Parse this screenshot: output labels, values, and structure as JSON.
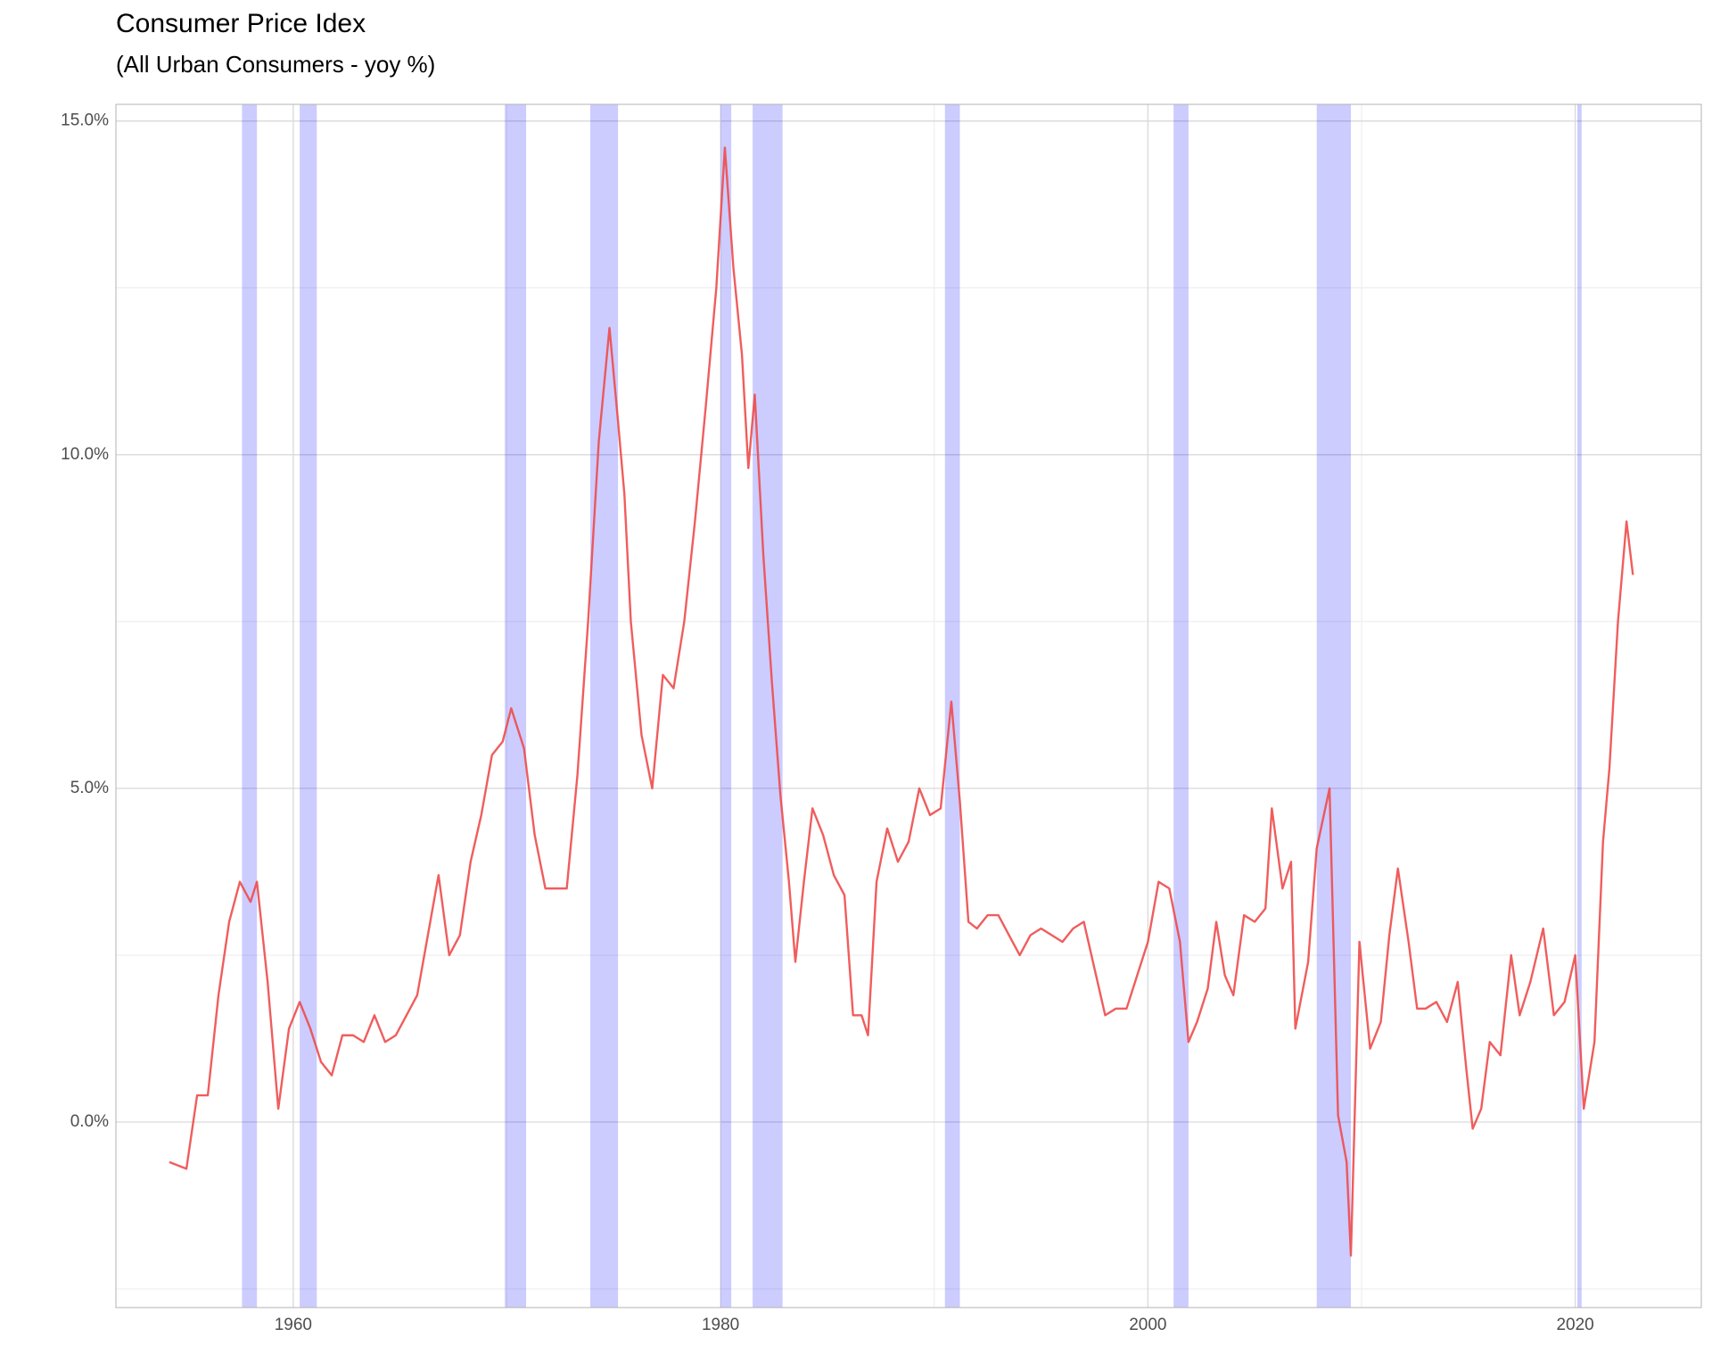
{
  "chart_data": {
    "type": "line",
    "title": "Consumer Price Idex",
    "subtitle": "(All Urban Consumers - yoy %)",
    "x": [
      1954.2,
      1955.0,
      1955.5,
      1956.0,
      1956.5,
      1957.0,
      1957.5,
      1958.0,
      1958.3,
      1958.8,
      1959.3,
      1959.8,
      1960.3,
      1960.8,
      1961.3,
      1961.8,
      1962.3,
      1962.8,
      1963.3,
      1963.8,
      1964.3,
      1964.8,
      1965.3,
      1965.8,
      1966.3,
      1966.8,
      1967.3,
      1967.8,
      1968.3,
      1968.8,
      1969.3,
      1969.8,
      1970.2,
      1970.8,
      1971.3,
      1971.8,
      1972.3,
      1972.8,
      1973.3,
      1973.8,
      1974.3,
      1974.8,
      1975.2,
      1975.5,
      1975.8,
      1976.3,
      1976.8,
      1977.3,
      1977.8,
      1978.3,
      1978.8,
      1979.3,
      1979.8,
      1980.2,
      1980.6,
      1981.0,
      1981.3,
      1981.6,
      1982.0,
      1982.4,
      1982.8,
      1983.2,
      1983.5,
      1983.9,
      1984.3,
      1984.8,
      1985.3,
      1985.8,
      1986.2,
      1986.6,
      1986.9,
      1987.3,
      1987.8,
      1988.3,
      1988.8,
      1989.3,
      1989.8,
      1990.3,
      1990.8,
      1991.2,
      1991.6,
      1992.0,
      1992.5,
      1993.0,
      1993.5,
      1994.0,
      1994.5,
      1995.0,
      1995.5,
      1996.0,
      1996.5,
      1997.0,
      1997.5,
      1998.0,
      1998.5,
      1999.0,
      1999.5,
      2000.0,
      2000.5,
      2001.0,
      2001.5,
      2001.9,
      2002.3,
      2002.8,
      2003.2,
      2003.6,
      2004.0,
      2004.5,
      2005.0,
      2005.5,
      2005.8,
      2006.3,
      2006.7,
      2006.9,
      2007.5,
      2007.9,
      2008.5,
      2008.9,
      2009.3,
      2009.5,
      2009.9,
      2010.4,
      2010.9,
      2011.3,
      2011.7,
      2012.2,
      2012.6,
      2013.0,
      2013.5,
      2014.0,
      2014.5,
      2014.9,
      2015.2,
      2015.6,
      2016.0,
      2016.5,
      2017.0,
      2017.4,
      2017.9,
      2018.5,
      2019.0,
      2019.5,
      2020.0,
      2020.4,
      2020.9,
      2021.3,
      2021.6,
      2022.0,
      2022.4,
      2022.7
    ],
    "series": [
      {
        "color": "#ee4b4b",
        "values": [
          -0.6,
          -0.7,
          0.4,
          0.4,
          1.9,
          3.0,
          3.6,
          3.3,
          3.6,
          2.1,
          0.2,
          1.4,
          1.8,
          1.4,
          0.9,
          0.7,
          1.3,
          1.3,
          1.2,
          1.6,
          1.2,
          1.3,
          1.6,
          1.9,
          2.8,
          3.7,
          2.5,
          2.8,
          3.9,
          4.6,
          5.5,
          5.7,
          6.2,
          5.6,
          4.3,
          3.5,
          3.5,
          3.5,
          5.2,
          7.5,
          10.2,
          11.9,
          10.5,
          9.4,
          7.5,
          5.8,
          5.0,
          6.7,
          6.5,
          7.5,
          9.0,
          10.7,
          12.5,
          14.6,
          12.8,
          11.5,
          9.8,
          10.9,
          8.5,
          6.6,
          4.9,
          3.6,
          2.4,
          3.6,
          4.7,
          4.3,
          3.7,
          3.4,
          1.6,
          1.6,
          1.3,
          3.6,
          4.4,
          3.9,
          4.2,
          5.0,
          4.6,
          4.7,
          6.3,
          4.8,
          3.0,
          2.9,
          3.1,
          3.1,
          2.8,
          2.5,
          2.8,
          2.9,
          2.8,
          2.7,
          2.9,
          3.0,
          2.3,
          1.6,
          1.7,
          1.7,
          2.2,
          2.7,
          3.6,
          3.5,
          2.7,
          1.2,
          1.5,
          2.0,
          3.0,
          2.2,
          1.9,
          3.1,
          3.0,
          3.2,
          4.7,
          3.5,
          3.9,
          1.4,
          2.4,
          4.1,
          5.0,
          0.1,
          -0.6,
          -2.0,
          2.7,
          1.1,
          1.5,
          2.8,
          3.8,
          2.7,
          1.7,
          1.7,
          1.8,
          1.5,
          2.1,
          0.8,
          -0.1,
          0.2,
          1.2,
          1.0,
          2.5,
          1.6,
          2.1,
          2.9,
          1.6,
          1.8,
          2.5,
          0.2,
          1.2,
          4.2,
          5.3,
          7.5,
          9.0,
          8.2
        ]
      }
    ],
    "recessions": [
      [
        1957.6,
        1958.3
      ],
      [
        1960.3,
        1961.1
      ],
      [
        1969.9,
        1970.9
      ],
      [
        1973.9,
        1975.2
      ],
      [
        1980.0,
        1980.5
      ],
      [
        1981.5,
        1982.9
      ],
      [
        1990.5,
        1991.2
      ],
      [
        2001.2,
        2001.9
      ],
      [
        2007.9,
        2009.5
      ],
      [
        2020.1,
        2020.3
      ]
    ],
    "recession_color": "#0000ff",
    "xlim": [
      1951.7,
      2025.9
    ],
    "xticks": [
      1960,
      1980,
      2000,
      2020
    ],
    "ylim": [
      -2.78,
      15.25
    ],
    "yticks": [
      {
        "value": 0,
        "label": "0.0%"
      },
      {
        "value": 5,
        "label": "5.0%"
      },
      {
        "value": 10,
        "label": "10.0%"
      },
      {
        "value": 15,
        "label": "15.0%"
      }
    ],
    "grid": true
  }
}
